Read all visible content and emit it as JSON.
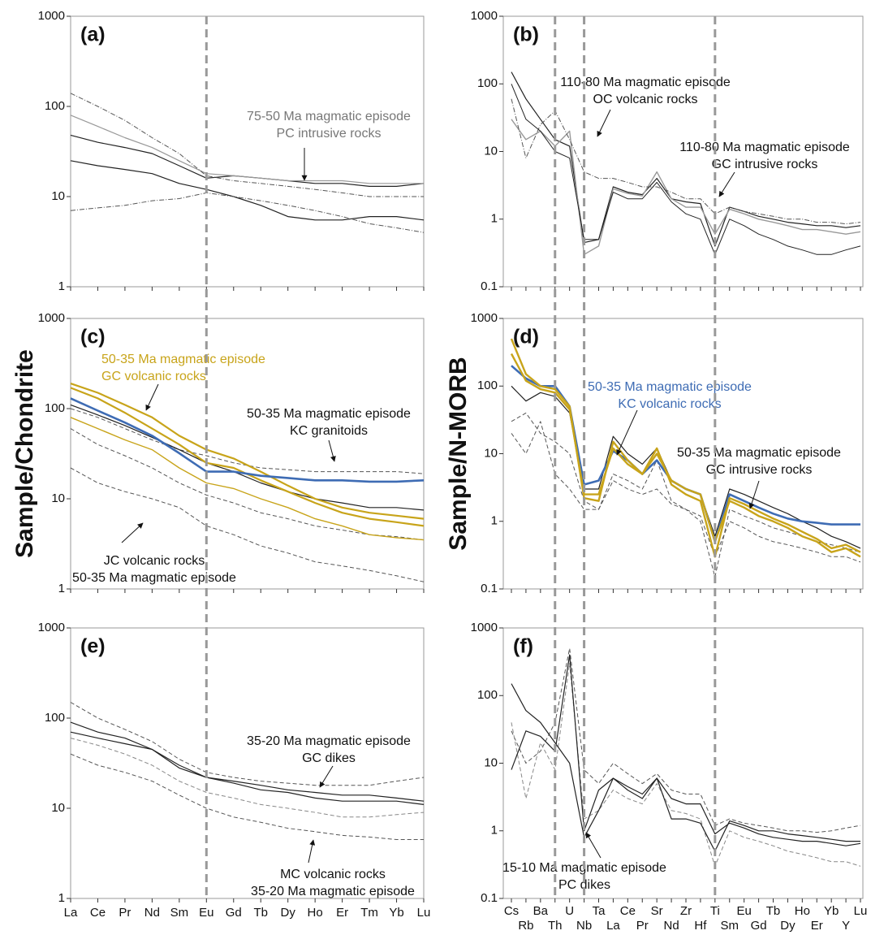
{
  "chart_data": [
    {
      "type": "line",
      "label": "(a)",
      "log_scale": true,
      "ylim": [
        1,
        1000
      ],
      "yticks": [
        1,
        10,
        100,
        1000
      ],
      "series": [
        {
          "color": "#222222",
          "style": "solid",
          "width": 1.2,
          "values": [
            48,
            40,
            35,
            30,
            22,
            16,
            17,
            16,
            15,
            14,
            14,
            13,
            13,
            14
          ]
        },
        {
          "color": "#999999",
          "style": "solid",
          "width": 1.2,
          "values": [
            80,
            60,
            45,
            35,
            25,
            18,
            17,
            16,
            15,
            15,
            15,
            14,
            14,
            14
          ]
        },
        {
          "color": "#222222",
          "style": "solid",
          "width": 1.2,
          "values": [
            25,
            22,
            20,
            18,
            14,
            12,
            10,
            8,
            6,
            5.5,
            5.5,
            6,
            6,
            5.5
          ]
        },
        {
          "color": "#555555",
          "style": "dashdot",
          "width": 1,
          "values": [
            140,
            100,
            70,
            45,
            30,
            17,
            15,
            14,
            13,
            12,
            11,
            10,
            10,
            10
          ]
        },
        {
          "color": "#555555",
          "style": "dashdot",
          "width": 1,
          "values": [
            7,
            7.5,
            8,
            9,
            9.5,
            11,
            10,
            9,
            8,
            7,
            6,
            5,
            4.5,
            4
          ]
        }
      ],
      "annotations": [
        {
          "color": "#777777",
          "lines": [
            "75-50 Ma magmatic episode",
            "PC intrusive rocks"
          ]
        }
      ]
    },
    {
      "type": "line",
      "label": "(b)",
      "log_scale": true,
      "ylim": [
        0.1,
        1000
      ],
      "yticks": [
        0.1,
        1,
        10,
        100,
        1000
      ],
      "series": [
        {
          "color": "#222222",
          "style": "solid",
          "width": 1.2,
          "values": [
            150,
            60,
            30,
            15,
            12,
            0.45,
            0.5,
            3,
            2.5,
            2.3,
            4,
            2,
            1.8,
            1.7,
            0.4,
            1.5,
            1.3,
            1.1,
            1,
            0.9,
            0.85,
            0.8,
            0.8,
            0.75,
            0.8
          ]
        },
        {
          "color": "#999999",
          "style": "solid",
          "width": 1.4,
          "values": [
            30,
            15,
            20,
            12,
            20,
            0.3,
            0.4,
            2.8,
            2.4,
            2.2,
            5,
            2,
            1.5,
            1.5,
            0.6,
            1.4,
            1.2,
            1,
            0.9,
            0.8,
            0.7,
            0.7,
            0.65,
            0.6,
            0.65
          ]
        },
        {
          "color": "#555555",
          "style": "dashdot",
          "width": 1,
          "values": [
            60,
            8,
            25,
            40,
            15,
            5,
            4,
            4,
            3.5,
            3,
            3,
            2.5,
            2,
            2,
            1.2,
            1.5,
            1.3,
            1.2,
            1.1,
            1,
            1,
            0.9,
            0.9,
            0.85,
            0.9
          ]
        },
        {
          "color": "#222222",
          "style": "solid",
          "width": 1,
          "values": [
            100,
            30,
            20,
            10,
            8,
            0.5,
            0.5,
            2.5,
            2,
            2,
            3.5,
            1.8,
            1.2,
            1,
            0.3,
            1,
            0.8,
            0.6,
            0.5,
            0.4,
            0.35,
            0.3,
            0.3,
            0.35,
            0.4
          ]
        }
      ],
      "annotations": [
        {
          "color": "#111111",
          "lines": [
            "110-80 Ma magmatic episode",
            "OC volcanic rocks"
          ]
        },
        {
          "color": "#111111",
          "lines": [
            "110-80 Ma magmatic episode",
            "GC intrusive rocks"
          ]
        }
      ]
    },
    {
      "type": "line",
      "label": "(c)",
      "ylabel": "Sample/Chondrite",
      "log_scale": true,
      "ylim": [
        1,
        1000
      ],
      "yticks": [
        1,
        10,
        100,
        1000
      ],
      "series": [
        {
          "color": "#555555",
          "style": "dashed",
          "width": 1,
          "values": [
            100,
            80,
            60,
            45,
            35,
            30,
            25,
            22,
            21,
            20,
            20,
            20,
            20,
            19
          ]
        },
        {
          "color": "#555555",
          "style": "dashed",
          "width": 1,
          "values": [
            22,
            15,
            12,
            10,
            8,
            5,
            4,
            3,
            2.5,
            2,
            1.8,
            1.6,
            1.4,
            1.2
          ]
        },
        {
          "color": "#555555",
          "style": "dashed",
          "width": 1,
          "values": [
            60,
            40,
            30,
            22,
            15,
            11,
            9,
            7,
            6,
            5,
            4.5,
            4,
            3.8,
            3.5
          ]
        },
        {
          "color": "#222222",
          "style": "solid",
          "width": 1.2,
          "values": [
            110,
            85,
            65,
            48,
            35,
            25,
            20,
            15,
            12,
            10,
            9,
            8,
            8,
            7.5
          ]
        },
        {
          "color": "#c8a41a",
          "style": "solid",
          "width": 2.2,
          "values": [
            190,
            150,
            110,
            80,
            50,
            35,
            28,
            20,
            14,
            10,
            8,
            7,
            6.5,
            6
          ]
        },
        {
          "color": "#c8a41a",
          "style": "solid",
          "width": 2.2,
          "values": [
            170,
            130,
            90,
            60,
            40,
            25,
            22,
            16,
            12,
            9,
            7,
            6,
            5.5,
            5
          ]
        },
        {
          "color": "#c8a41a",
          "style": "solid",
          "width": 1.4,
          "values": [
            80,
            60,
            45,
            35,
            22,
            15,
            13,
            10,
            8,
            6,
            5,
            4,
            3.7,
            3.5
          ]
        },
        {
          "color": "#3e6cb4",
          "style": "solid",
          "width": 2.6,
          "values": [
            130,
            95,
            70,
            50,
            32,
            20,
            20,
            18,
            17,
            16,
            16,
            15.5,
            15.5,
            16
          ]
        }
      ],
      "annotations": [
        {
          "color": "#c8a41a",
          "lines": [
            "50-35 Ma magmatic episode",
            "GC volcanic rocks"
          ]
        },
        {
          "color": "#111111",
          "lines": [
            "50-35 Ma magmatic episode",
            "KC granitoids"
          ]
        },
        {
          "color": "#111111",
          "lines": [
            "JC volcanic rocks",
            "50-35 Ma magmatic episode"
          ]
        }
      ]
    },
    {
      "type": "line",
      "label": "(d)",
      "ylabel": "Sample/N-MORB",
      "log_scale": true,
      "ylim": [
        0.1,
        1000
      ],
      "yticks": [
        0.1,
        1,
        10,
        100,
        1000
      ],
      "series": [
        {
          "color": "#555555",
          "style": "dashed",
          "width": 1,
          "values": [
            30,
            40,
            20,
            15,
            10,
            2,
            1.5,
            5,
            4,
            3,
            8,
            2,
            1.5,
            1,
            0.15,
            1.5,
            1.2,
            1,
            0.8,
            0.7,
            0.6,
            0.5,
            0.45,
            0.4,
            0.35
          ]
        },
        {
          "color": "#555555",
          "style": "dashed",
          "width": 1,
          "values": [
            20,
            10,
            30,
            5,
            3,
            1.5,
            1.5,
            4,
            3,
            2.5,
            3,
            1.8,
            1.5,
            1.2,
            0.3,
            1,
            0.8,
            0.6,
            0.5,
            0.45,
            0.4,
            0.35,
            0.3,
            0.3,
            0.25
          ]
        },
        {
          "color": "#222222",
          "style": "solid",
          "width": 1.2,
          "values": [
            100,
            60,
            80,
            70,
            40,
            3,
            3,
            18,
            10,
            7,
            12,
            4,
            3,
            2.5,
            0.6,
            3,
            2.5,
            2,
            1.6,
            1.3,
            1,
            0.8,
            0.6,
            0.5,
            0.4
          ]
        },
        {
          "color": "#3e6cb4",
          "style": "solid",
          "width": 2.6,
          "values": [
            200,
            130,
            100,
            100,
            50,
            3.5,
            4,
            11,
            8,
            5,
            8,
            4,
            3,
            2.5,
            0.5,
            2.5,
            2,
            1.6,
            1.3,
            1.1,
            1,
            0.95,
            0.9,
            0.9,
            0.9
          ]
        },
        {
          "color": "#c8a41a",
          "style": "solid",
          "width": 2.4,
          "values": [
            500,
            150,
            100,
            90,
            50,
            2.2,
            2,
            15,
            8,
            5,
            12,
            3.5,
            2.5,
            2,
            0.3,
            2.2,
            1.8,
            1.4,
            1.1,
            0.9,
            0.7,
            0.55,
            0.4,
            0.45,
            0.35
          ]
        },
        {
          "color": "#c8a41a",
          "style": "solid",
          "width": 2.4,
          "values": [
            300,
            120,
            90,
            80,
            45,
            2.5,
            2.5,
            12,
            7,
            5,
            10,
            4,
            3,
            2.5,
            0.5,
            2,
            1.6,
            1.2,
            1,
            0.8,
            0.6,
            0.5,
            0.35,
            0.4,
            0.3
          ]
        }
      ],
      "annotations": [
        {
          "color": "#3e6cb4",
          "lines": [
            "50-35 Ma magmatic episode",
            "KC volcanic rocks"
          ]
        },
        {
          "color": "#111111",
          "lines": [
            "50-35 Ma magmatic episode",
            "GC intrusive rocks"
          ]
        }
      ]
    },
    {
      "type": "line",
      "label": "(e)",
      "log_scale": true,
      "ylim": [
        1,
        1000
      ],
      "yticks": [
        1,
        10,
        100,
        1000
      ],
      "categories": [
        "La",
        "Ce",
        "Pr",
        "Nd",
        "Sm",
        "Eu",
        "Gd",
        "Tb",
        "Dy",
        "Ho",
        "Er",
        "Tm",
        "Yb",
        "Lu"
      ],
      "series": [
        {
          "color": "#555555",
          "style": "dashed",
          "width": 1,
          "values": [
            150,
            100,
            75,
            55,
            35,
            25,
            22,
            20,
            19,
            18,
            18,
            18,
            20,
            22
          ]
        },
        {
          "color": "#555555",
          "style": "dashed",
          "width": 1,
          "values": [
            40,
            30,
            25,
            20,
            14,
            10,
            8,
            7,
            6,
            5.5,
            5,
            4.8,
            4.5,
            4.5
          ]
        },
        {
          "color": "#888888",
          "style": "dashed",
          "width": 1,
          "values": [
            60,
            50,
            40,
            30,
            20,
            15,
            13,
            11,
            10,
            9,
            8,
            8,
            8.5,
            9
          ]
        },
        {
          "color": "#222222",
          "style": "solid",
          "width": 1.2,
          "values": [
            70,
            60,
            52,
            45,
            30,
            22,
            19,
            16,
            15,
            13,
            12,
            12,
            12,
            11
          ]
        },
        {
          "color": "#222222",
          "style": "solid",
          "width": 1.2,
          "values": [
            90,
            70,
            60,
            45,
            28,
            22,
            20,
            18,
            16,
            15,
            14,
            14,
            13,
            12
          ]
        }
      ],
      "annotations": [
        {
          "color": "#111111",
          "lines": [
            "35-20 Ma magmatic episode",
            "GC dikes"
          ]
        },
        {
          "color": "#111111",
          "lines": [
            "MC volcanic rocks",
            "35-20 Ma magmatic episode"
          ]
        }
      ]
    },
    {
      "type": "line",
      "label": "(f)",
      "log_scale": true,
      "ylim": [
        0.1,
        1000
      ],
      "yticks": [
        0.1,
        1,
        10,
        100,
        1000
      ],
      "categories": [
        "Cs",
        "Rb",
        "Ba",
        "Th",
        "U",
        "Nb",
        "Ta",
        "La",
        "Ce",
        "Pr",
        "Sr",
        "Nd",
        "Zr",
        "Hf",
        "Ti",
        "Sm",
        "Eu",
        "Gd",
        "Tb",
        "Dy",
        "Ho",
        "Er",
        "Yb",
        "Y",
        "Lu"
      ],
      "series": [
        {
          "color": "#555555",
          "style": "dashed",
          "width": 1,
          "values": [
            30,
            10,
            15,
            40,
            500,
            8,
            5,
            10,
            7,
            5,
            7,
            4,
            3.5,
            3.5,
            1.2,
            1.5,
            1.3,
            1.2,
            1.1,
            1,
            1,
            0.95,
            1,
            1.1,
            1.2
          ]
        },
        {
          "color": "#888888",
          "style": "dashed",
          "width": 1,
          "values": [
            40,
            3,
            20,
            8,
            300,
            1.5,
            2,
            4,
            3,
            2.5,
            5,
            2,
            1.8,
            1.5,
            0.3,
            1,
            0.8,
            0.7,
            0.6,
            0.5,
            0.45,
            0.4,
            0.35,
            0.35,
            0.3
          ]
        },
        {
          "color": "#222222",
          "style": "solid",
          "width": 1.2,
          "values": [
            150,
            60,
            40,
            20,
            10,
            0.8,
            2,
            6,
            4,
            3,
            6,
            1.5,
            1.5,
            1.3,
            0.5,
            1.4,
            1.2,
            1,
            1,
            0.9,
            0.85,
            0.8,
            0.75,
            0.7,
            0.7
          ]
        },
        {
          "color": "#222222",
          "style": "solid",
          "width": 1.2,
          "values": [
            8,
            30,
            25,
            15,
            400,
            1,
            4,
            6,
            4.5,
            3.5,
            6,
            3,
            2.5,
            2.5,
            0.9,
            1.3,
            1.1,
            0.9,
            0.8,
            0.75,
            0.7,
            0.7,
            0.65,
            0.6,
            0.65
          ]
        }
      ],
      "annotations": [
        {
          "color": "#111111",
          "lines": [
            "15-10 Ma magmatic episode",
            "PC dikes"
          ]
        }
      ]
    }
  ]
}
